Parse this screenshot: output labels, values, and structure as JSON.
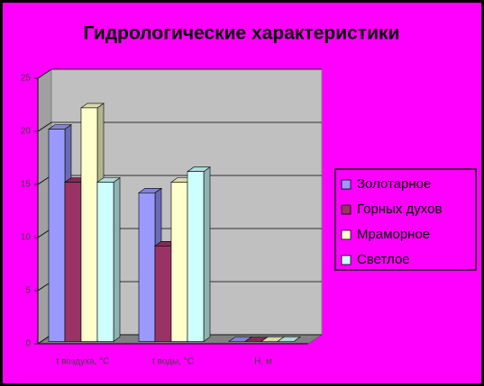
{
  "chart_data": {
    "type": "bar3d",
    "title": "Гидрологические характеристики",
    "categories": [
      "t воздуха, °C",
      "t воды, °C",
      "Н, м"
    ],
    "series": [
      {
        "name": "Золотарное",
        "color": "#9999ff",
        "values": [
          20,
          14,
          0
        ]
      },
      {
        "name": "Горных духов",
        "color": "#993366",
        "values": [
          15,
          9,
          0
        ]
      },
      {
        "name": "Мраморное",
        "color": "#ffffcc",
        "values": [
          22,
          15,
          0
        ]
      },
      {
        "name": "Светлое",
        "color": "#ccffff",
        "values": [
          15,
          16,
          0
        ]
      }
    ],
    "ylim": [
      0,
      25
    ],
    "yticks": [
      0,
      5,
      10,
      15,
      20,
      25
    ],
    "grid": true,
    "legend": "right"
  }
}
